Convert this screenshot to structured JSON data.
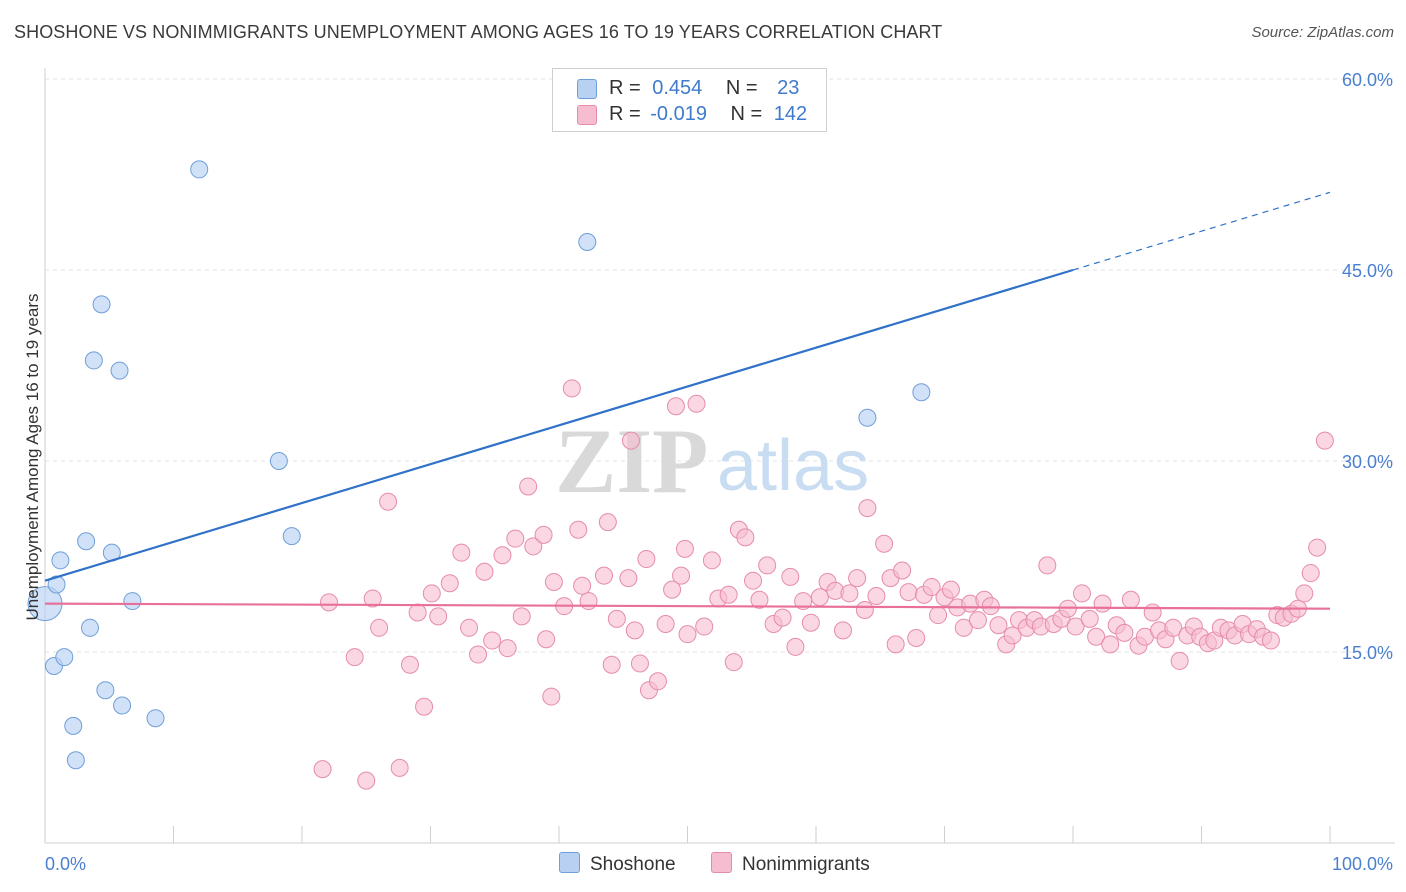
{
  "title": "SHOSHONE VS NONIMMIGRANTS UNEMPLOYMENT AMONG AGES 16 TO 19 YEARS CORRELATION CHART",
  "source": "Source: ZipAtlas.com",
  "watermark": {
    "zip": "ZIP",
    "atlas": "atlas"
  },
  "legend": {
    "rows": [
      {
        "r_label": "R =",
        "r_value": "0.454",
        "n_label": "N =",
        "n_value": "23"
      },
      {
        "r_label": "R =",
        "r_value": "-0.019",
        "n_label": "N =",
        "n_value": "142"
      }
    ]
  },
  "colors": {
    "shoshone_fill": "#b8d1f3",
    "shoshone_stroke": "#6f9fd8",
    "shoshone_line": "#2f72c8",
    "nonimm_fill": "#f6bdd0",
    "nonimm_stroke": "#e68cab",
    "nonimm_line": "#e8709a",
    "tick_label": "#4a7fd0"
  },
  "chart_data": {
    "type": "scatter",
    "title": "SHOSHONE VS NONIMMIGRANTS UNEMPLOYMENT AMONG AGES 16 TO 19 YEARS CORRELATION CHART",
    "xlabel": "",
    "ylabel": "Unemployment Among Ages 16 to 19 years",
    "xlim": [
      0,
      100
    ],
    "ylim": [
      0,
      60
    ],
    "x_tick_labels": [
      "0.0%",
      "100.0%"
    ],
    "y_ticks": [
      15,
      30,
      45,
      60
    ],
    "y_tick_labels": [
      "15.0%",
      "30.0%",
      "45.0%",
      "60.0%"
    ],
    "grid": true,
    "legend_position": "top-center",
    "series": [
      {
        "name": "Shoshone",
        "color": "#b8d1f3",
        "r": 0.454,
        "n": 23,
        "points": [
          [
            0.0,
            18.8
          ],
          [
            0.7,
            13.9
          ],
          [
            0.9,
            20.3
          ],
          [
            1.2,
            22.2
          ],
          [
            1.5,
            14.6
          ],
          [
            2.2,
            9.2
          ],
          [
            2.4,
            6.5
          ],
          [
            3.2,
            23.7
          ],
          [
            3.5,
            16.9
          ],
          [
            3.8,
            37.9
          ],
          [
            4.4,
            42.3
          ],
          [
            4.7,
            12.0
          ],
          [
            5.2,
            22.8
          ],
          [
            5.8,
            37.1
          ],
          [
            6.0,
            10.8
          ],
          [
            6.8,
            19.0
          ],
          [
            8.6,
            9.8
          ],
          [
            12.0,
            52.9
          ],
          [
            18.2,
            30.0
          ],
          [
            19.2,
            24.1
          ],
          [
            42.2,
            47.2
          ],
          [
            64.0,
            33.4
          ],
          [
            68.2,
            35.4
          ]
        ],
        "trend": {
          "x0": 0,
          "y0": 20.6,
          "x1": 80,
          "y1": 45.0,
          "dashed_to_x": 100,
          "dashed_to_y": 51.1
        }
      },
      {
        "name": "Nonimmigrants",
        "color": "#f6bdd0",
        "r": -0.019,
        "n": 142,
        "points": [
          [
            21.6,
            5.8
          ],
          [
            25.0,
            4.9
          ],
          [
            25.5,
            19.2
          ],
          [
            26.0,
            16.9
          ],
          [
            26.7,
            26.8
          ],
          [
            27.6,
            5.9
          ],
          [
            28.4,
            14.0
          ],
          [
            29.0,
            18.1
          ],
          [
            29.5,
            10.7
          ],
          [
            30.6,
            17.8
          ],
          [
            31.5,
            20.4
          ],
          [
            33.0,
            16.9
          ],
          [
            33.7,
            14.8
          ],
          [
            34.8,
            15.9
          ],
          [
            35.6,
            22.6
          ],
          [
            36.0,
            15.3
          ],
          [
            36.6,
            23.9
          ],
          [
            37.1,
            17.8
          ],
          [
            37.6,
            28.0
          ],
          [
            38.0,
            23.3
          ],
          [
            38.8,
            24.2
          ],
          [
            39.4,
            11.5
          ],
          [
            39.6,
            20.5
          ],
          [
            40.4,
            18.6
          ],
          [
            41.0,
            35.7
          ],
          [
            41.5,
            24.6
          ],
          [
            42.3,
            19.0
          ],
          [
            43.5,
            21.0
          ],
          [
            43.8,
            25.2
          ],
          [
            44.1,
            14.0
          ],
          [
            44.5,
            17.6
          ],
          [
            45.4,
            20.8
          ],
          [
            45.6,
            31.6
          ],
          [
            45.9,
            16.7
          ],
          [
            46.3,
            14.1
          ],
          [
            47.0,
            12.0
          ],
          [
            47.7,
            12.7
          ],
          [
            48.3,
            17.2
          ],
          [
            49.1,
            34.3
          ],
          [
            49.5,
            21.0
          ],
          [
            49.8,
            23.1
          ],
          [
            50.0,
            16.4
          ],
          [
            50.7,
            34.5
          ],
          [
            51.3,
            17.0
          ],
          [
            51.9,
            22.2
          ],
          [
            52.4,
            19.2
          ],
          [
            53.2,
            19.5
          ],
          [
            53.6,
            14.2
          ],
          [
            54.0,
            24.6
          ],
          [
            54.5,
            24.0
          ],
          [
            55.1,
            20.6
          ],
          [
            55.6,
            19.1
          ],
          [
            56.2,
            21.8
          ],
          [
            56.7,
            17.2
          ],
          [
            57.4,
            17.7
          ],
          [
            58.0,
            20.9
          ],
          [
            58.4,
            15.4
          ],
          [
            59.0,
            19.0
          ],
          [
            59.6,
            17.3
          ],
          [
            60.3,
            19.3
          ],
          [
            60.9,
            20.5
          ],
          [
            61.5,
            19.8
          ],
          [
            62.1,
            16.7
          ],
          [
            62.6,
            19.6
          ],
          [
            63.2,
            20.8
          ],
          [
            63.8,
            18.3
          ],
          [
            64.0,
            26.3
          ],
          [
            64.7,
            19.4
          ],
          [
            65.3,
            23.5
          ],
          [
            65.8,
            20.8
          ],
          [
            66.2,
            15.6
          ],
          [
            66.7,
            21.4
          ],
          [
            67.2,
            19.7
          ],
          [
            67.8,
            16.1
          ],
          [
            68.4,
            19.5
          ],
          [
            69.0,
            20.1
          ],
          [
            69.5,
            17.9
          ],
          [
            70.0,
            19.3
          ],
          [
            70.5,
            19.9
          ],
          [
            71.0,
            18.5
          ],
          [
            71.5,
            16.9
          ],
          [
            72.0,
            18.8
          ],
          [
            72.6,
            17.5
          ],
          [
            73.1,
            19.1
          ],
          [
            73.6,
            18.6
          ],
          [
            74.2,
            17.1
          ],
          [
            74.8,
            15.6
          ],
          [
            75.3,
            16.3
          ],
          [
            75.8,
            17.5
          ],
          [
            76.4,
            16.9
          ],
          [
            77.0,
            17.5
          ],
          [
            77.5,
            17.0
          ],
          [
            78.0,
            21.8
          ],
          [
            78.5,
            17.2
          ],
          [
            79.1,
            17.6
          ],
          [
            79.6,
            18.4
          ],
          [
            80.2,
            17.0
          ],
          [
            80.7,
            19.6
          ],
          [
            81.3,
            17.6
          ],
          [
            81.8,
            16.2
          ],
          [
            82.3,
            18.8
          ],
          [
            82.9,
            15.6
          ],
          [
            83.4,
            17.1
          ],
          [
            84.0,
            16.5
          ],
          [
            84.5,
            19.1
          ],
          [
            85.1,
            15.5
          ],
          [
            85.6,
            16.2
          ],
          [
            86.2,
            18.1
          ],
          [
            86.7,
            16.7
          ],
          [
            87.2,
            16.0
          ],
          [
            87.8,
            16.9
          ],
          [
            88.3,
            14.3
          ],
          [
            88.9,
            16.3
          ],
          [
            89.4,
            17.0
          ],
          [
            89.9,
            16.2
          ],
          [
            90.5,
            15.7
          ],
          [
            91.0,
            15.9
          ],
          [
            91.5,
            16.9
          ],
          [
            92.1,
            16.7
          ],
          [
            92.6,
            16.3
          ],
          [
            93.2,
            17.2
          ],
          [
            93.7,
            16.4
          ],
          [
            94.3,
            16.8
          ],
          [
            94.8,
            16.2
          ],
          [
            95.4,
            15.9
          ],
          [
            95.9,
            17.9
          ],
          [
            96.4,
            17.7
          ],
          [
            97.0,
            18.0
          ],
          [
            97.5,
            18.4
          ],
          [
            98.0,
            19.6
          ],
          [
            98.5,
            21.2
          ],
          [
            99.0,
            23.2
          ],
          [
            99.6,
            31.6
          ],
          [
            22.1,
            18.9
          ],
          [
            24.1,
            14.6
          ],
          [
            30.1,
            19.6
          ],
          [
            32.4,
            22.8
          ],
          [
            34.2,
            21.3
          ],
          [
            39.0,
            16.0
          ],
          [
            41.8,
            20.2
          ],
          [
            46.8,
            22.3
          ],
          [
            48.8,
            19.9
          ]
        ],
        "trend": {
          "x0": 0,
          "y0": 18.8,
          "x1": 100,
          "y1": 18.4
        }
      }
    ]
  },
  "bottom_legend": [
    "Shoshone",
    "Nonimmigrants"
  ]
}
